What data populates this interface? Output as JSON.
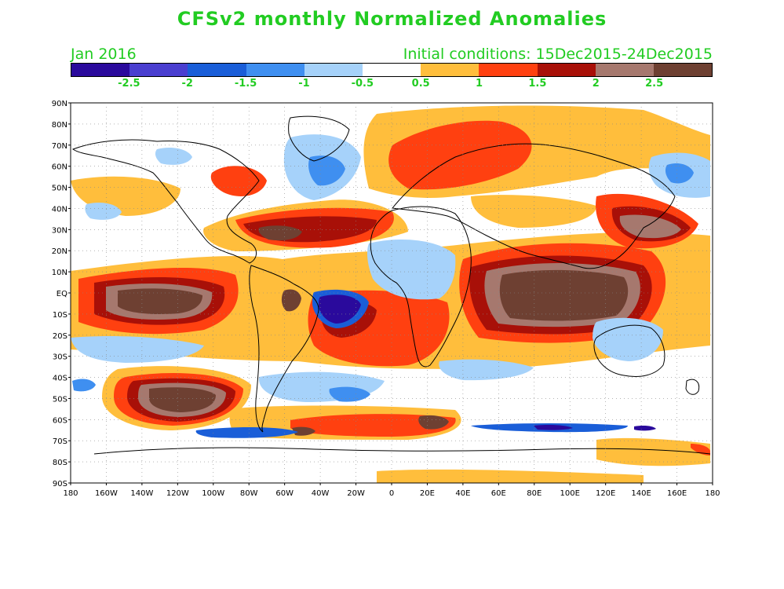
{
  "title": "CFSv2 monthly Normalized Anomalies",
  "month_label": "Jan 2016",
  "init_label": "Initial conditions: 15Dec2015-24Dec2015",
  "text_color": "#22cc22",
  "colorbar": {
    "colors": [
      "#2a0a9c",
      "#4a3fd0",
      "#1a5ed8",
      "#3f8ff0",
      "#a6d2fa",
      "#ffffff",
      "#ffbe3c",
      "#ff4010",
      "#a81008",
      "#a6786e",
      "#6e4032"
    ],
    "labels": [
      "-2.5",
      "-2",
      "-1.5",
      "-1",
      "-0.5",
      "0.5",
      "1",
      "1.5",
      "2",
      "2.5"
    ]
  },
  "map": {
    "lat_labels": [
      "90N",
      "80N",
      "70N",
      "60N",
      "50N",
      "40N",
      "30N",
      "20N",
      "10N",
      "EQ",
      "10S",
      "20S",
      "30S",
      "40S",
      "50S",
      "60S",
      "70S",
      "80S",
      "90S"
    ],
    "lon_labels": [
      "180",
      "160W",
      "140W",
      "120W",
      "100W",
      "80W",
      "60W",
      "40W",
      "20W",
      "0",
      "20E",
      "40E",
      "60E",
      "80E",
      "100E",
      "120E",
      "140E",
      "160E",
      "180"
    ],
    "lon_range": [
      -180,
      180
    ],
    "lat_range": [
      -90,
      90
    ]
  }
}
